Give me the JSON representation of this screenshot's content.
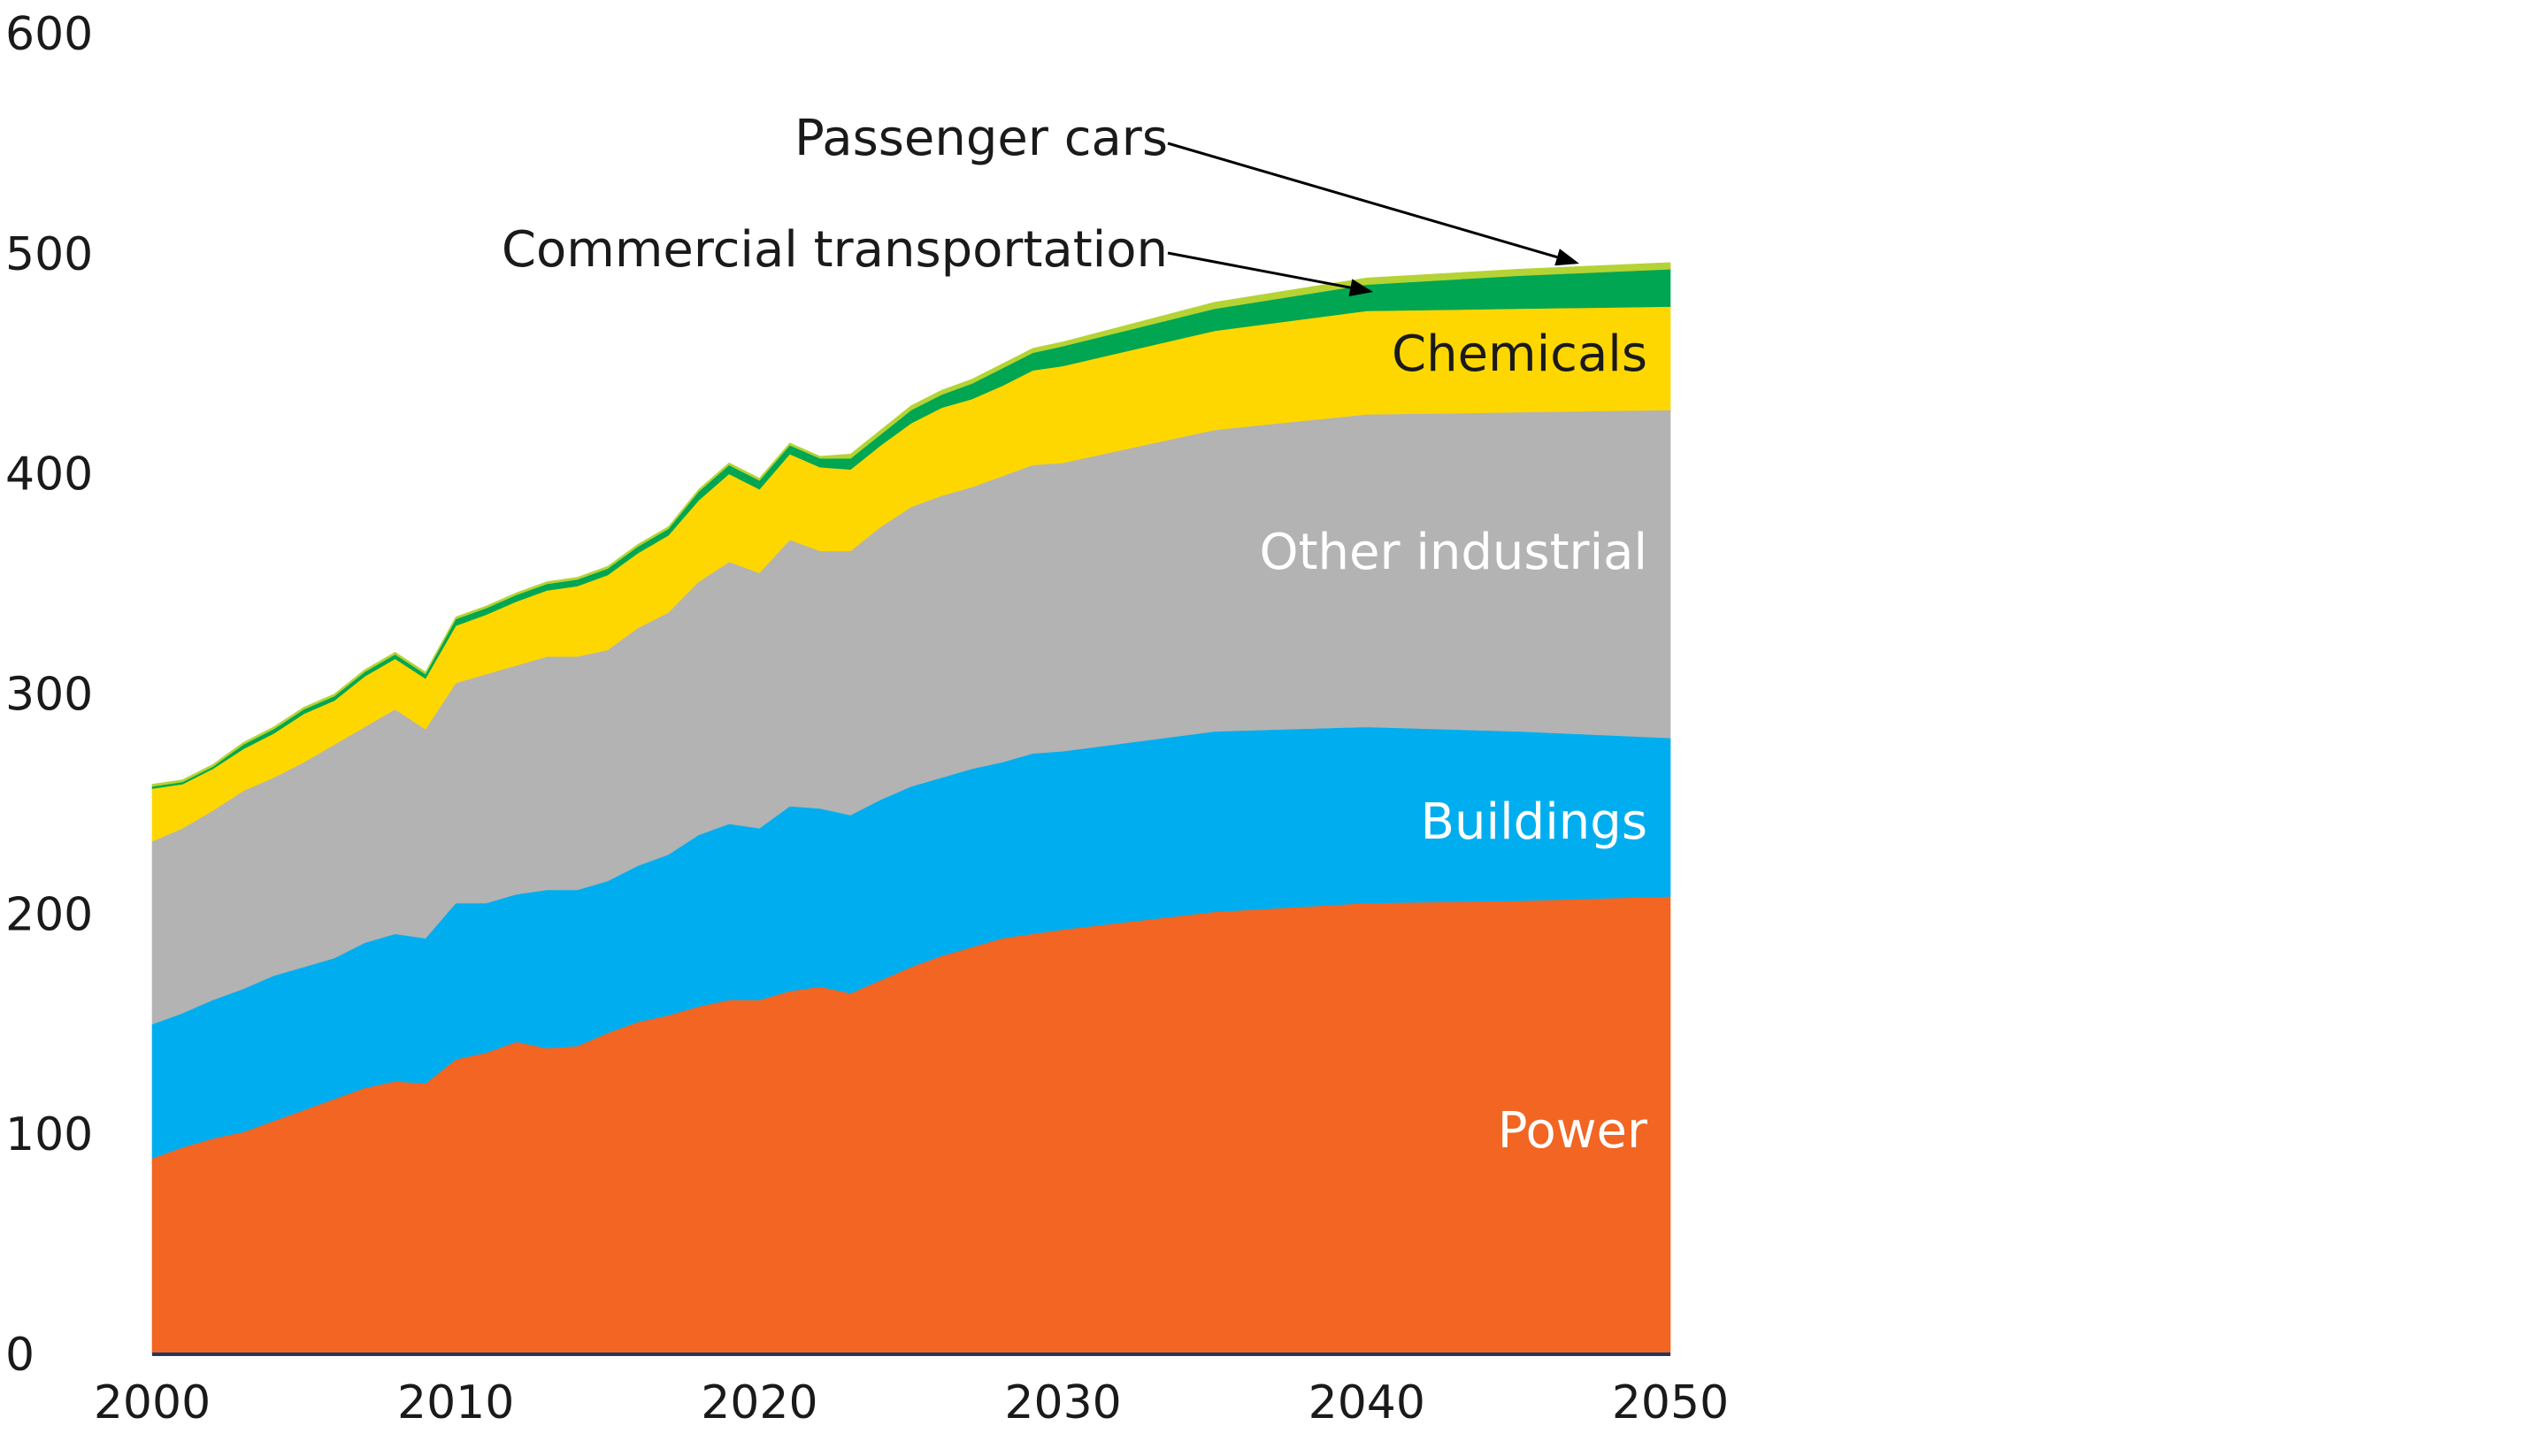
{
  "chart_data": {
    "type": "area",
    "stacked": true,
    "title": "",
    "xlabel": "",
    "ylabel": "",
    "xlim": [
      2000,
      2050
    ],
    "ylim": [
      0,
      600
    ],
    "x_ticks": [
      2000,
      2010,
      2020,
      2030,
      2040,
      2050
    ],
    "y_ticks": [
      0,
      100,
      200,
      300,
      400,
      500,
      600
    ],
    "grid": false,
    "legend": "none (series labelled directly on areas)",
    "x": [
      2000,
      2001,
      2002,
      2003,
      2004,
      2005,
      2006,
      2007,
      2008,
      2009,
      2010,
      2011,
      2012,
      2013,
      2014,
      2015,
      2016,
      2017,
      2018,
      2019,
      2020,
      2021,
      2022,
      2023,
      2024,
      2025,
      2026,
      2027,
      2028,
      2029,
      2030,
      2035,
      2040,
      2045,
      2050
    ],
    "series": [
      {
        "name": "Power",
        "color": "#f26522",
        "values": [
          89,
          94,
          98,
          101,
          106,
          111,
          116,
          121,
          124,
          123,
          134,
          137,
          142,
          139,
          140,
          146,
          151,
          154,
          158,
          161,
          161,
          165,
          167,
          164,
          170,
          176,
          181,
          185,
          189,
          191,
          193,
          201,
          205,
          206,
          208
        ]
      },
      {
        "name": "Buildings",
        "color": "#00aeef",
        "values": [
          61,
          61,
          63,
          65,
          66,
          65,
          64,
          66,
          67,
          66,
          71,
          68,
          67,
          72,
          71,
          69,
          71,
          73,
          78,
          80,
          78,
          84,
          81,
          81,
          82,
          82,
          81,
          81,
          80,
          82,
          81,
          82,
          80,
          77,
          72
        ]
      },
      {
        "name": "Other industrial",
        "color": "#b3b3b3",
        "values": [
          83,
          84,
          86,
          90,
          90,
          93,
          97,
          98,
          102,
          95,
          100,
          104,
          104,
          106,
          106,
          105,
          108,
          110,
          115,
          119,
          116,
          121,
          117,
          120,
          124,
          127,
          128,
          128,
          130,
          131,
          131,
          137,
          142,
          145,
          149
        ]
      },
      {
        "name": "Chemicals",
        "color": "#ffd700",
        "values": [
          24,
          20,
          19,
          19,
          20,
          22,
          20,
          23,
          23,
          23,
          26,
          27,
          29,
          30,
          32,
          34,
          34,
          35,
          37,
          40,
          38,
          39,
          38,
          37,
          37,
          38,
          40,
          40,
          41,
          43,
          44,
          45,
          47,
          47,
          47
        ]
      },
      {
        "name": "Commercial transportation",
        "color": "#00a651",
        "values": [
          1,
          1,
          1,
          2,
          2,
          2,
          2,
          2,
          2,
          2,
          3,
          3,
          3,
          3,
          3,
          3,
          3,
          3,
          4,
          4,
          4,
          4,
          4,
          5,
          5,
          6,
          6,
          7,
          8,
          8,
          9,
          10,
          12,
          15,
          17
        ]
      },
      {
        "name": "Passenger cars",
        "color": "#b5d334",
        "values": [
          1,
          1,
          1,
          1,
          1,
          1,
          1,
          1,
          1,
          1,
          1,
          1,
          1,
          1,
          1,
          1,
          1,
          1,
          1,
          1,
          1,
          1,
          1,
          2,
          2,
          2,
          2,
          2,
          2,
          2,
          2,
          3,
          3,
          3,
          3
        ]
      }
    ],
    "labels": {
      "power": "Power",
      "buildings": "Buildings",
      "other_industrial": "Other industrial",
      "chemicals": "Chemicals",
      "commercial_transportation": "Commercial transportation",
      "passenger_cars": "Passenger cars"
    }
  }
}
